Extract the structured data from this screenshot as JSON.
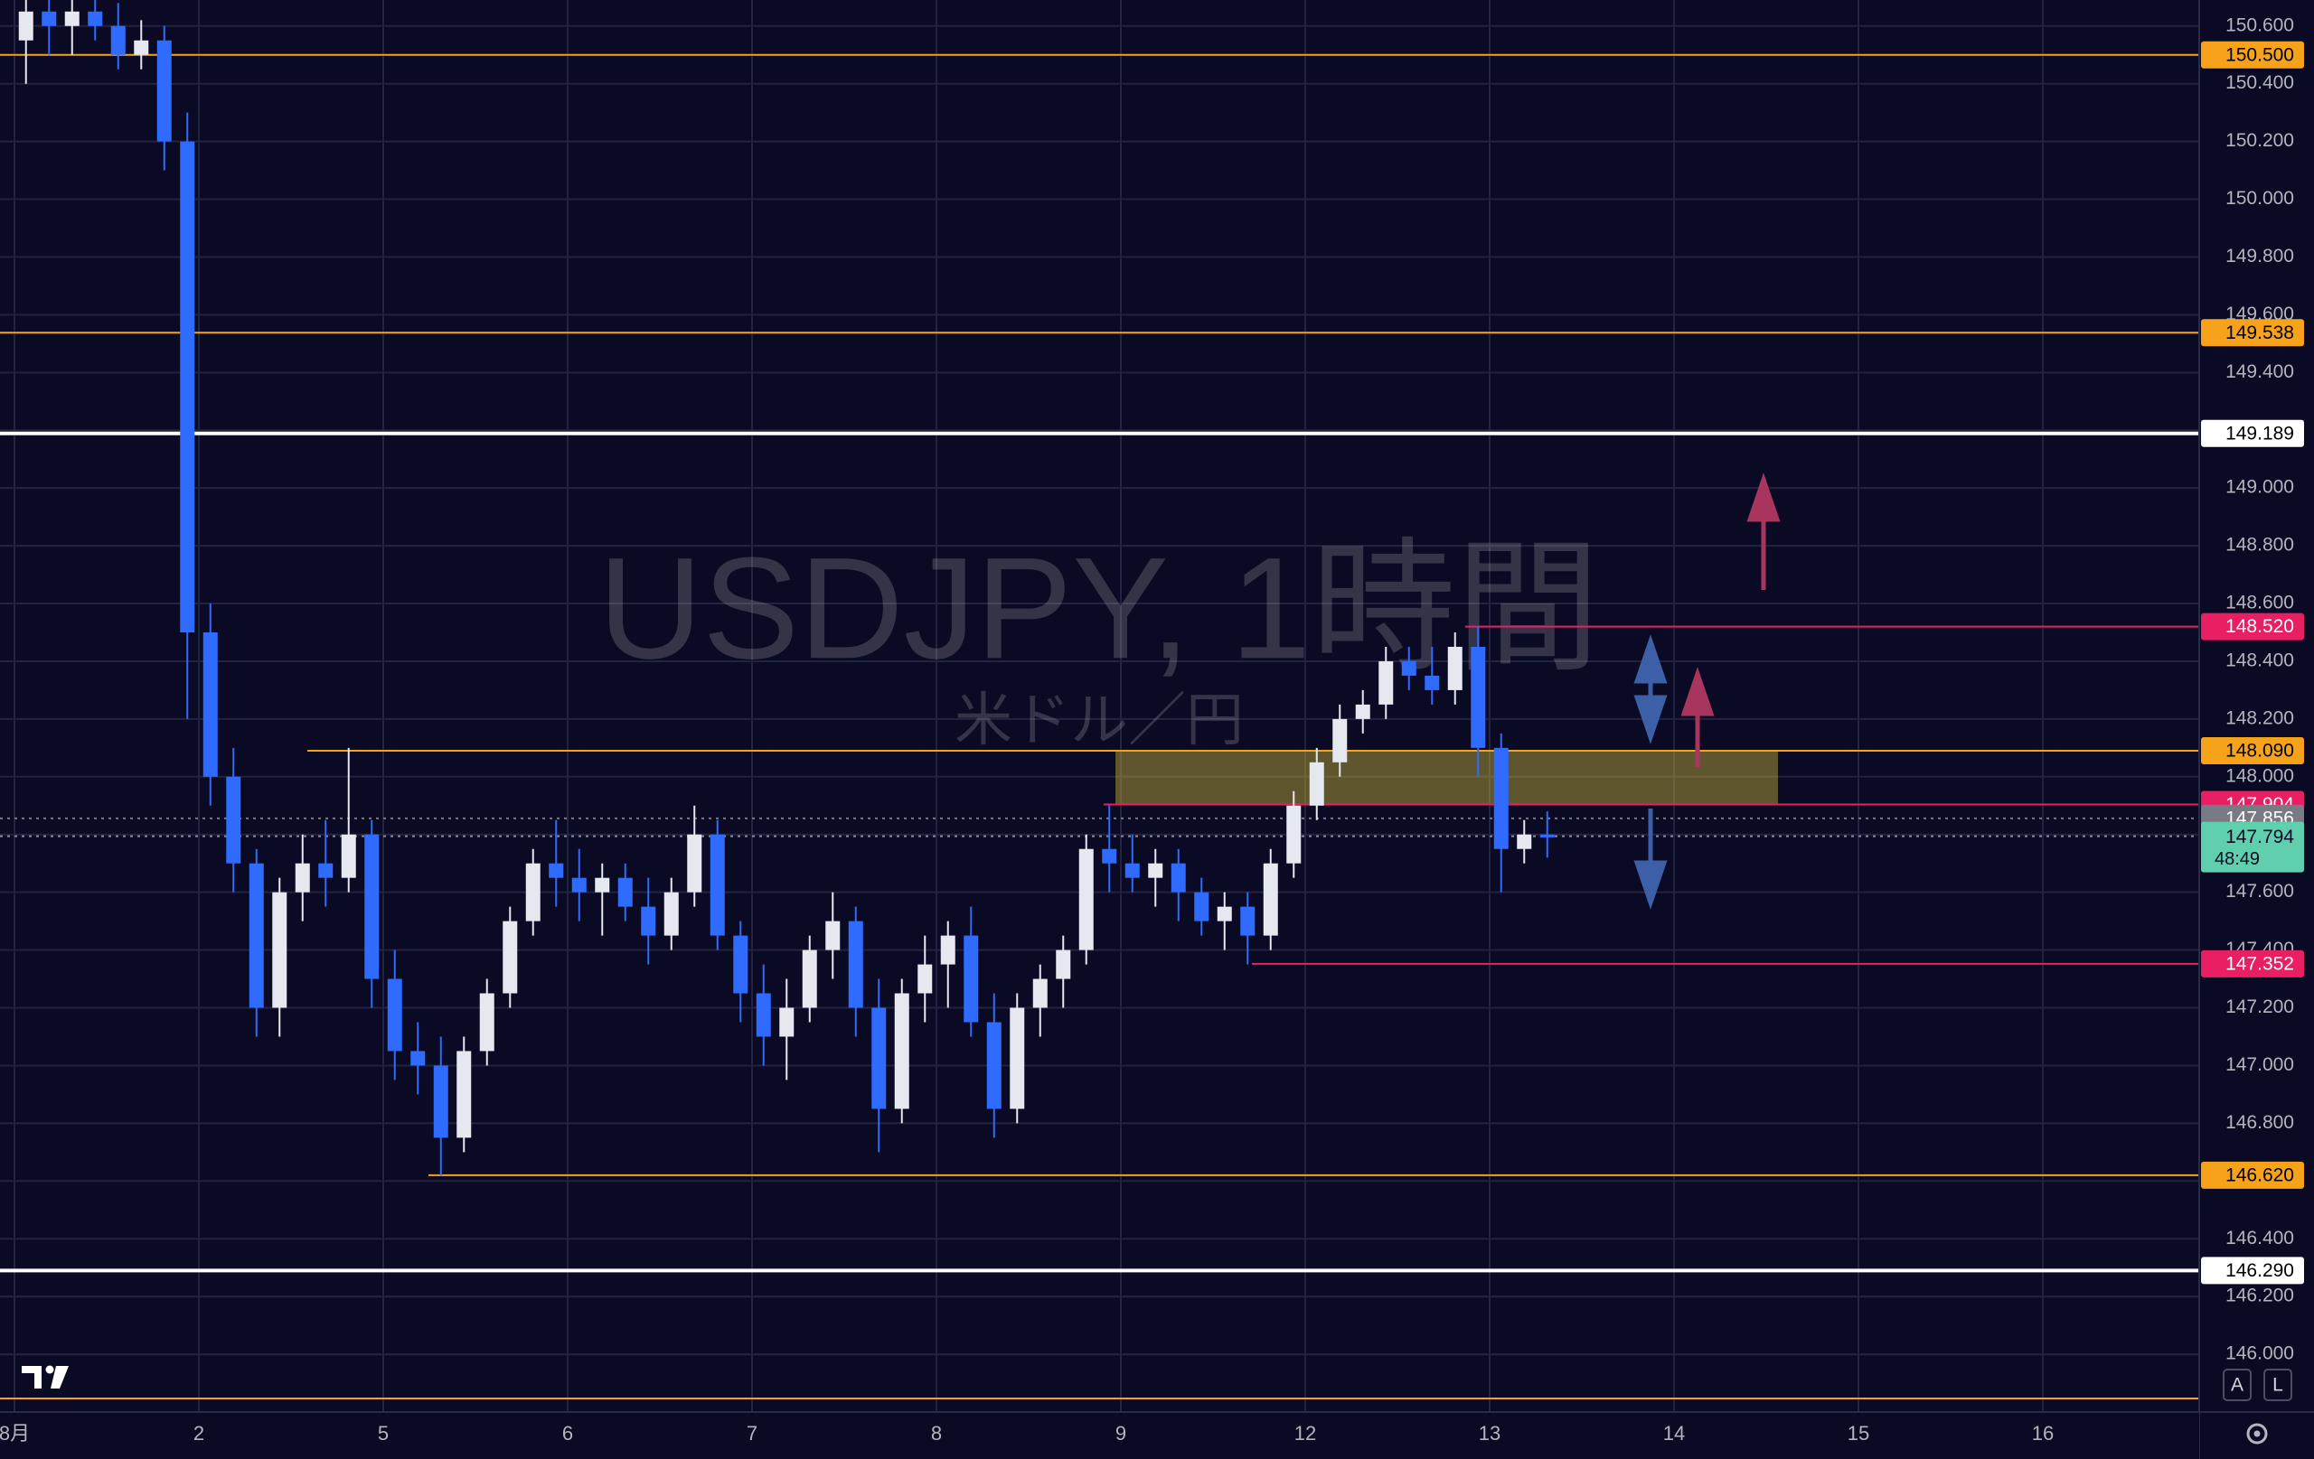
{
  "chart_data": {
    "type": "candlestick",
    "title": "USDJPY, 1時間",
    "subtitle": "米ドル／円",
    "up_color": "#e6e8ef",
    "down_color": "#2f6bff",
    "grid": true,
    "ylim": [
      145.8,
      150.69
    ],
    "yticks": [
      {
        "value": 146.0,
        "label": "146.000"
      },
      {
        "value": 146.2,
        "label": "146.200"
      },
      {
        "value": 146.4,
        "label": "146.400"
      },
      {
        "value": 146.6,
        "label": "146.600"
      },
      {
        "value": 146.8,
        "label": "146.800"
      },
      {
        "value": 147.0,
        "label": "147.000"
      },
      {
        "value": 147.2,
        "label": "147.200"
      },
      {
        "value": 147.4,
        "label": "147.400"
      },
      {
        "value": 147.6,
        "label": "147.600"
      },
      {
        "value": 147.8,
        "label": "147.800"
      },
      {
        "value": 148.0,
        "label": "148.000"
      },
      {
        "value": 148.2,
        "label": "148.200"
      },
      {
        "value": 148.4,
        "label": "148.400"
      },
      {
        "value": 148.6,
        "label": "148.600"
      },
      {
        "value": 148.8,
        "label": "148.800"
      },
      {
        "value": 149.0,
        "label": "149.000"
      },
      {
        "value": 149.2,
        "label": "149.200"
      },
      {
        "value": 149.4,
        "label": "149.400"
      },
      {
        "value": 149.6,
        "label": "149.600"
      },
      {
        "value": 149.8,
        "label": "149.800"
      },
      {
        "value": 150.0,
        "label": "150.000"
      },
      {
        "value": 150.2,
        "label": "150.200"
      },
      {
        "value": 150.4,
        "label": "150.400"
      },
      {
        "value": 150.6,
        "label": "150.600"
      }
    ],
    "days": [
      {
        "label": "8月",
        "open": [
          150.55,
          150.65,
          150.6,
          150.65,
          150.6,
          150.5,
          150.55,
          150.2
        ],
        "high": [
          150.7,
          150.7,
          150.7,
          150.7,
          150.68,
          150.62,
          150.6,
          150.3
        ],
        "low": [
          150.4,
          150.5,
          150.5,
          150.55,
          150.45,
          150.45,
          150.1,
          148.2
        ],
        "close": [
          150.65,
          150.6,
          150.65,
          150.6,
          150.5,
          150.55,
          150.2,
          148.5
        ]
      },
      {
        "label": "2",
        "open": [
          148.5,
          148.0,
          147.7,
          147.2,
          147.6,
          147.7,
          147.65,
          147.8
        ],
        "high": [
          148.6,
          148.1,
          147.75,
          147.65,
          147.8,
          147.85,
          148.1,
          147.85
        ],
        "low": [
          147.9,
          147.6,
          147.1,
          147.1,
          147.5,
          147.55,
          147.6,
          147.2
        ],
        "close": [
          148.0,
          147.7,
          147.2,
          147.6,
          147.7,
          147.65,
          147.8,
          147.3
        ]
      },
      {
        "label": "5",
        "open": [
          147.3,
          147.05,
          147.0,
          146.75,
          147.05,
          147.25,
          147.5,
          147.7
        ],
        "high": [
          147.4,
          147.15,
          147.1,
          147.1,
          147.3,
          147.55,
          147.75,
          147.85
        ],
        "low": [
          146.95,
          146.9,
          146.62,
          146.7,
          147.0,
          147.2,
          147.45,
          147.55
        ],
        "close": [
          147.05,
          147.0,
          146.75,
          147.05,
          147.25,
          147.5,
          147.7,
          147.65
        ]
      },
      {
        "label": "6",
        "open": [
          147.65,
          147.6,
          147.65,
          147.55,
          147.45,
          147.6,
          147.8,
          147.45
        ],
        "high": [
          147.75,
          147.7,
          147.7,
          147.65,
          147.65,
          147.9,
          147.85,
          147.5
        ],
        "low": [
          147.5,
          147.45,
          147.5,
          147.35,
          147.4,
          147.55,
          147.4,
          147.15
        ],
        "close": [
          147.6,
          147.65,
          147.55,
          147.45,
          147.6,
          147.8,
          147.45,
          147.25
        ]
      },
      {
        "label": "7",
        "open": [
          147.25,
          147.1,
          147.2,
          147.4,
          147.5,
          147.2,
          146.85,
          147.25
        ],
        "high": [
          147.35,
          147.3,
          147.45,
          147.6,
          147.55,
          147.3,
          147.3,
          147.45
        ],
        "low": [
          147.0,
          146.95,
          147.15,
          147.3,
          147.1,
          146.7,
          146.8,
          147.15
        ],
        "close": [
          147.1,
          147.2,
          147.4,
          147.5,
          147.2,
          146.85,
          147.25,
          147.35
        ]
      },
      {
        "label": "8",
        "open": [
          147.35,
          147.45,
          147.15,
          146.85,
          147.2,
          147.3,
          147.4,
          147.75
        ],
        "high": [
          147.5,
          147.55,
          147.25,
          147.25,
          147.35,
          147.45,
          147.8,
          147.9
        ],
        "low": [
          147.2,
          147.1,
          146.75,
          146.8,
          147.1,
          147.2,
          147.35,
          147.6
        ],
        "close": [
          147.45,
          147.15,
          146.85,
          147.2,
          147.3,
          147.4,
          147.75,
          147.7
        ]
      },
      {
        "label": "9",
        "open": [
          147.7,
          147.65,
          147.7,
          147.6,
          147.5,
          147.55,
          147.45,
          147.7
        ],
        "high": [
          147.8,
          147.75,
          147.75,
          147.65,
          147.6,
          147.6,
          147.75,
          147.95
        ],
        "low": [
          147.6,
          147.55,
          147.5,
          147.45,
          147.4,
          147.35,
          147.4,
          147.65
        ],
        "close": [
          147.65,
          147.7,
          147.6,
          147.5,
          147.55,
          147.45,
          147.7,
          147.9
        ]
      },
      {
        "label": "12",
        "open": [
          147.9,
          148.05,
          148.2,
          148.25,
          148.4,
          148.35,
          148.3,
          148.45
        ],
        "high": [
          148.1,
          148.25,
          148.3,
          148.45,
          148.45,
          148.45,
          148.5,
          148.52
        ],
        "low": [
          147.85,
          148.0,
          148.15,
          148.2,
          148.3,
          148.25,
          148.25,
          148.0
        ],
        "close": [
          148.05,
          148.2,
          148.25,
          148.4,
          148.35,
          148.3,
          148.45,
          148.1
        ]
      },
      {
        "label": "13",
        "open": [
          148.1,
          147.75,
          147.8
        ],
        "high": [
          148.15,
          147.85,
          147.88
        ],
        "low": [
          147.6,
          147.7,
          147.72
        ],
        "close": [
          147.75,
          147.8,
          147.79
        ]
      },
      {
        "label": "14",
        "open": [],
        "high": [],
        "low": [],
        "close": []
      },
      {
        "label": "15",
        "open": [],
        "high": [],
        "low": [],
        "close": []
      },
      {
        "label": "16",
        "open": [],
        "high": [],
        "low": [],
        "close": []
      }
    ],
    "levels": [
      {
        "value": 150.5,
        "label": "150.500",
        "color": "#f7a21b"
      },
      {
        "value": 149.538,
        "label": "149.538",
        "color": "#f7a21b"
      },
      {
        "value": 149.189,
        "label": "149.189",
        "color": "#ffffff"
      },
      {
        "value": 148.52,
        "label": "148.520",
        "color": "#e91e63"
      },
      {
        "value": 148.09,
        "label": "148.090",
        "color": "#f7a21b"
      },
      {
        "value": 147.904,
        "label": "147.904",
        "color": "#e91e63"
      },
      {
        "value": 147.856,
        "label": "147.856",
        "color": "#787b86"
      },
      {
        "value": 147.352,
        "label": "147.352",
        "color": "#e91e63"
      },
      {
        "value": 146.62,
        "label": "146.620",
        "color": "#f7a21b"
      },
      {
        "value": 146.29,
        "label": "146.290",
        "color": "#ffffff"
      },
      {
        "value": 145.847,
        "color": "#f7a21b"
      }
    ],
    "last_price": {
      "value": 147.794,
      "label": "147.794",
      "countdown": "48:49",
      "color": "#5fcfae"
    },
    "buttons": [
      "A",
      "L"
    ]
  }
}
